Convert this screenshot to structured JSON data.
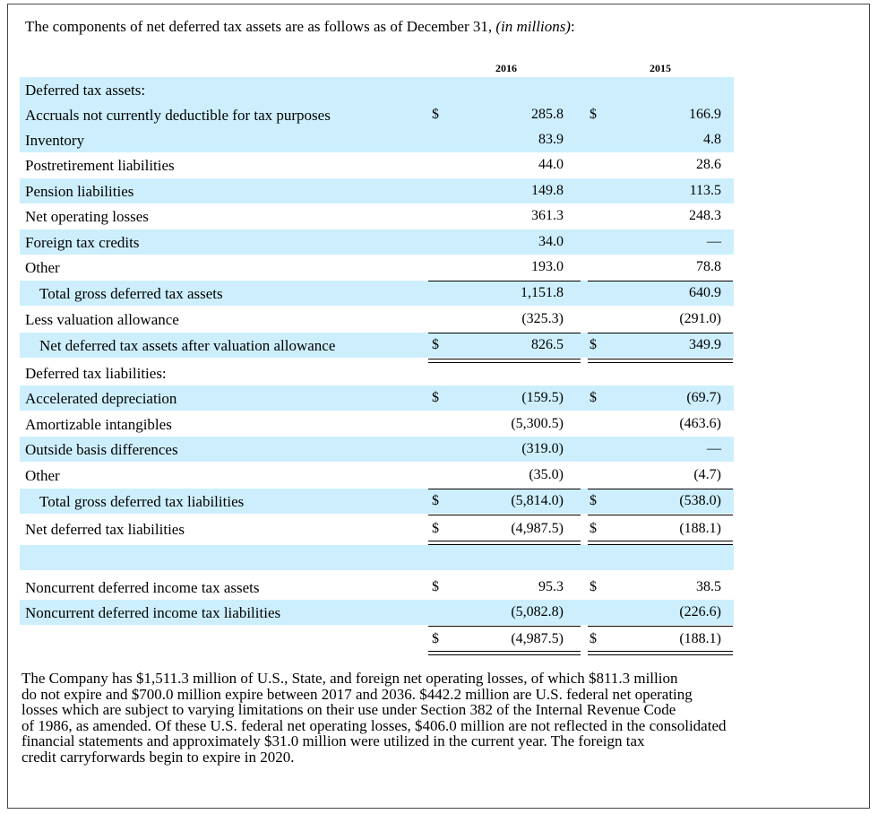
{
  "intro": {
    "text": "The components of net deferred tax assets are as follows as of December 31, ",
    "unit": "(in millions)",
    "suffix": ":"
  },
  "columns": [
    "2016",
    "2015"
  ],
  "rows": [
    {
      "label": "Deferred tax assets:",
      "shade": true,
      "indent": false,
      "d1": "",
      "v1": "",
      "d2": "",
      "v2": ""
    },
    {
      "label": "Accruals not currently deductible for tax purposes",
      "shade": true,
      "indent": false,
      "d1": "$",
      "v1": "285.8",
      "d2": "$",
      "v2": "166.9"
    },
    {
      "label": "Inventory",
      "shade": true,
      "indent": false,
      "d1": "",
      "v1": "83.9",
      "d2": "",
      "v2": "4.8"
    },
    {
      "label": "Postretirement liabilities",
      "shade": false,
      "indent": false,
      "d1": "",
      "v1": "44.0",
      "d2": "",
      "v2": "28.6"
    },
    {
      "label": "Pension liabilities",
      "shade": true,
      "indent": false,
      "d1": "",
      "v1": "149.8",
      "d2": "",
      "v2": "113.5"
    },
    {
      "label": "Net operating losses",
      "shade": false,
      "indent": false,
      "d1": "",
      "v1": "361.3",
      "d2": "",
      "v2": "248.3"
    },
    {
      "label": "Foreign tax credits",
      "shade": true,
      "indent": false,
      "d1": "",
      "v1": "34.0",
      "d2": "",
      "v2": "—"
    },
    {
      "label": "Other",
      "shade": false,
      "indent": false,
      "d1": "",
      "v1": "193.0",
      "d2": "",
      "v2": "78.8"
    },
    {
      "label": "Total gross deferred tax assets",
      "shade": true,
      "indent": true,
      "d1": "",
      "v1": "1,151.8",
      "d2": "",
      "v2": "640.9"
    },
    {
      "label": "Less valuation allowance",
      "shade": false,
      "indent": false,
      "d1": "",
      "v1": "(325.3)",
      "d2": "",
      "v2": "(291.0)"
    },
    {
      "label": "Net deferred tax assets after valuation allowance",
      "shade": true,
      "indent": true,
      "d1": "$",
      "v1": "826.5",
      "d2": "$",
      "v2": "349.9"
    },
    {
      "label": "Deferred tax liabilities:",
      "shade": false,
      "indent": false,
      "d1": "",
      "v1": "",
      "d2": "",
      "v2": ""
    },
    {
      "label": "Accelerated depreciation",
      "shade": true,
      "indent": false,
      "d1": "$",
      "v1": "(159.5)",
      "d2": "$",
      "v2": "(69.7)"
    },
    {
      "label": "Amortizable intangibles",
      "shade": false,
      "indent": false,
      "d1": "",
      "v1": "(5,300.5)",
      "d2": "",
      "v2": "(463.6)"
    },
    {
      "label": "Outside basis differences",
      "shade": true,
      "indent": false,
      "d1": "",
      "v1": "(319.0)",
      "d2": "",
      "v2": "—"
    },
    {
      "label": "Other",
      "shade": false,
      "indent": false,
      "d1": "",
      "v1": "(35.0)",
      "d2": "",
      "v2": "(4.7)"
    },
    {
      "label": "Total gross deferred tax liabilities",
      "shade": true,
      "indent": true,
      "d1": "$",
      "v1": "(5,814.0)",
      "d2": "$",
      "v2": "(538.0)"
    },
    {
      "label": "Net deferred tax liabilities",
      "shade": false,
      "indent": false,
      "d1": "$",
      "v1": "(4,987.5)",
      "d2": "$",
      "v2": "(188.1)"
    },
    {
      "label": "",
      "shade": true,
      "indent": false,
      "d1": "",
      "v1": "",
      "d2": "",
      "v2": ""
    },
    {
      "label": "Noncurrent deferred income tax assets",
      "shade": false,
      "indent": false,
      "d1": "$",
      "v1": "95.3",
      "d2": "$",
      "v2": "38.5"
    },
    {
      "label": "Noncurrent deferred income tax liabilities",
      "shade": true,
      "indent": false,
      "d1": "",
      "v1": "(5,082.8)",
      "d2": "",
      "v2": "(226.6)"
    },
    {
      "label": "",
      "shade": false,
      "indent": false,
      "d1": "$",
      "v1": "(4,987.5)",
      "d2": "$",
      "v2": "(188.1)"
    }
  ],
  "paragraph": [
    "The Company has $1,511.3 million of U.S., State, and foreign net operating losses, of which $811.3 million",
    "do not expire and $700.0 million expire between 2017 and 2036. $442.2 million are U.S. federal net operating",
    "losses which are subject to varying limitations on their use under Section 382 of the Internal Revenue Code",
    "of 1986, as amended. Of these U.S. federal net operating losses, $406.0 million are not reflected in the consolidated",
    "financial statements and approximately $31.0 million were utilized in the current year. The foreign tax",
    "credit carryforwards begin to expire in 2020."
  ]
}
